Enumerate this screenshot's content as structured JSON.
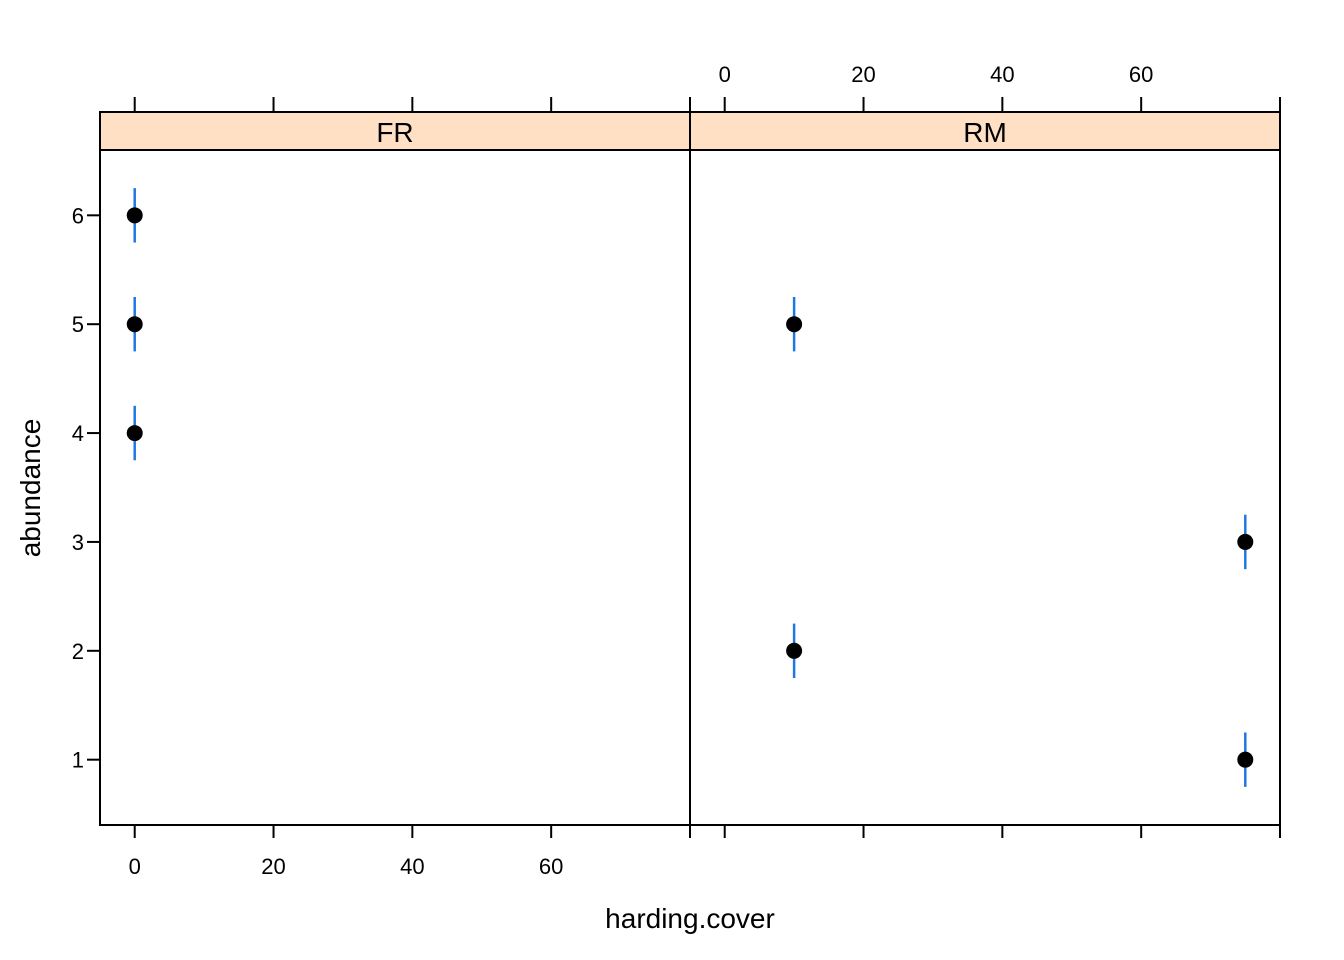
{
  "chart_data": {
    "type": "scatter",
    "layout": "lattice-panels",
    "xlabel": "harding.cover",
    "ylabel": "abundance",
    "xlim": [
      -5,
      80
    ],
    "ylim": [
      0.4,
      6.6
    ],
    "x_ticks": [
      0,
      20,
      40,
      60
    ],
    "y_ticks": [
      1,
      2,
      3,
      4,
      5,
      6
    ],
    "grid": false,
    "colors": {
      "strip": "#FFE0C4",
      "points": "#000000",
      "error_bars": "#1F78E0"
    },
    "error_bar_halfwidth": 0.25,
    "panels": [
      {
        "name": "FR",
        "points": [
          {
            "x": 0,
            "y": 6
          },
          {
            "x": 0,
            "y": 5
          },
          {
            "x": 0,
            "y": 4
          }
        ]
      },
      {
        "name": "RM",
        "points": [
          {
            "x": 10,
            "y": 5
          },
          {
            "x": 10,
            "y": 2
          },
          {
            "x": 75,
            "y": 3
          },
          {
            "x": 75,
            "y": 1
          }
        ]
      }
    ]
  }
}
